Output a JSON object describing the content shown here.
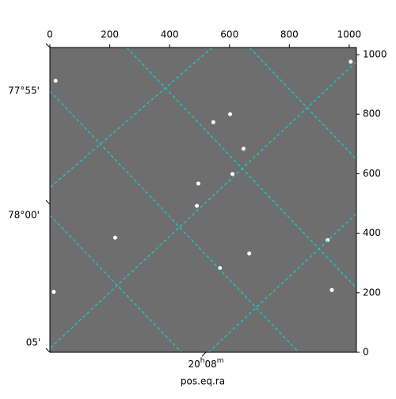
{
  "chart_data": {
    "type": "scatter",
    "xlabel": "pos.eq.ra",
    "xlim": [
      0,
      1024
    ],
    "xticks": [
      0,
      200,
      400,
      600,
      800,
      1000
    ],
    "ylim": [
      0,
      1024
    ],
    "yticks": [
      0,
      200,
      400,
      600,
      800,
      1000
    ],
    "dec_labels": [
      "77°55'",
      "78°00'",
      "05'"
    ],
    "ra_label": {
      "hours": "20",
      "h": "h",
      "minutes": "08",
      "m": "m"
    },
    "x": [
      19,
      546,
      928,
      666,
      568,
      218,
      13,
      610,
      1005,
      491,
      942,
      602,
      496,
      647
    ],
    "y": [
      912,
      773,
      377,
      332,
      283,
      385,
      203,
      599,
      976,
      492,
      209,
      800,
      567,
      684
    ],
    "color": "#ffffff",
    "background": "#6e6e6e",
    "grid_color": "#00e5e5"
  }
}
